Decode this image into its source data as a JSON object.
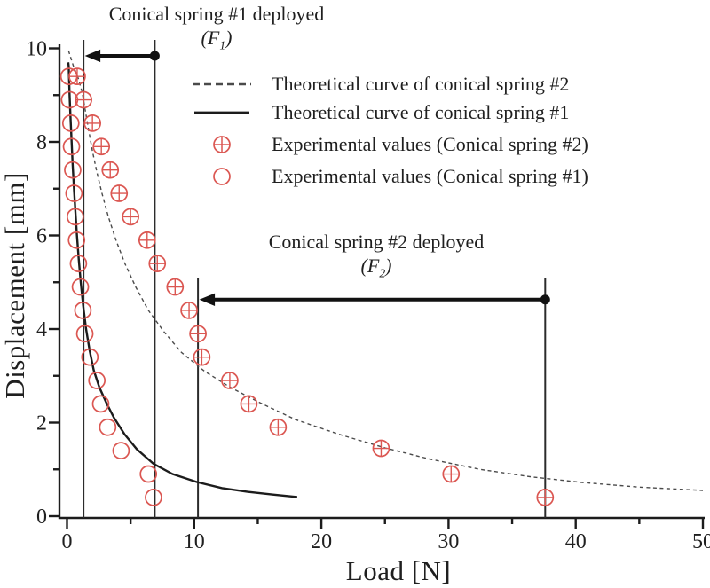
{
  "colors": {
    "marker_red": "#db5752",
    "line_black": "#1c1c1c",
    "dashed_gray": "#4a4a4a",
    "annotation_black": "#2b2b2b",
    "text": "#1f1f1f",
    "background": "#ffffff"
  },
  "annotations": {
    "spring1": {
      "line1": "Conical spring #1 deployed",
      "force_prefix": "(F",
      "force_sub": "1",
      "force_suffix": ")"
    },
    "spring2": {
      "line1": "Conical spring #2 deployed",
      "force_prefix": "(F",
      "force_sub": "2",
      "force_suffix": ")"
    }
  },
  "legend": {
    "items": [
      {
        "icon": "dashed-line-swatch",
        "label": "Theoretical curve of conical spring #2"
      },
      {
        "icon": "solid-line-swatch",
        "label": "Theoretical curve of conical spring #1"
      },
      {
        "icon": "circle-plus-marker",
        "label": "Experimental values (Conical spring #2)"
      },
      {
        "icon": "circle-marker",
        "label": "Experimental values (Conical spring #1)"
      }
    ]
  },
  "chart_data": {
    "type": "scatter",
    "title": "",
    "xlabel": "Load [N]",
    "ylabel": "Displacement [mm]",
    "xlim": [
      0,
      50
    ],
    "ylim": [
      0,
      10
    ],
    "grid": false,
    "legend_position": "upper-right-inside",
    "x_ticks_major": [
      0,
      10,
      20,
      30,
      40,
      50
    ],
    "x_ticks_minor": [
      5,
      15,
      25,
      35,
      45
    ],
    "y_ticks_major": [
      0,
      2,
      4,
      6,
      8,
      10
    ],
    "y_ticks_minor": [
      1,
      3,
      5,
      7,
      9
    ],
    "series": [
      {
        "name": "Theoretical curve of conical spring #2",
        "kind": "line",
        "style": "dashed",
        "color": "#4a4a4a",
        "points": [
          [
            0.12,
            9.95
          ],
          [
            0.5,
            9.62
          ],
          [
            0.9,
            9.35
          ],
          [
            1.2,
            9.05
          ],
          [
            1.45,
            8.65
          ],
          [
            1.7,
            8.25
          ],
          [
            2.0,
            7.8
          ],
          [
            2.35,
            7.35
          ],
          [
            2.75,
            6.9
          ],
          [
            3.25,
            6.4
          ],
          [
            3.85,
            5.9
          ],
          [
            4.55,
            5.4
          ],
          [
            5.4,
            4.9
          ],
          [
            6.4,
            4.4
          ],
          [
            7.6,
            3.95
          ],
          [
            9.0,
            3.5
          ],
          [
            10.8,
            3.1
          ],
          [
            12.8,
            2.76
          ],
          [
            15.2,
            2.42
          ],
          [
            18.0,
            2.06
          ],
          [
            21.5,
            1.74
          ],
          [
            25.0,
            1.46
          ],
          [
            28.5,
            1.22
          ],
          [
            32.5,
            1.0
          ],
          [
            36.5,
            0.84
          ],
          [
            40.5,
            0.72
          ],
          [
            45.0,
            0.62
          ],
          [
            50.0,
            0.55
          ]
        ]
      },
      {
        "name": "Theoretical curve of conical spring #1",
        "kind": "line",
        "style": "solid",
        "color": "#1c1c1c",
        "points": [
          [
            0.1,
            9.7
          ],
          [
            0.13,
            9.62
          ],
          [
            0.2,
            9.0
          ],
          [
            0.28,
            8.5
          ],
          [
            0.36,
            8.0
          ],
          [
            0.45,
            7.5
          ],
          [
            0.55,
            7.0
          ],
          [
            0.66,
            6.5
          ],
          [
            0.78,
            6.0
          ],
          [
            0.92,
            5.5
          ],
          [
            1.08,
            5.0
          ],
          [
            1.27,
            4.5
          ],
          [
            1.5,
            4.0
          ],
          [
            1.77,
            3.55
          ],
          [
            2.1,
            3.12
          ],
          [
            2.55,
            2.75
          ],
          [
            3.1,
            2.42
          ],
          [
            3.7,
            2.1
          ],
          [
            4.5,
            1.76
          ],
          [
            5.5,
            1.43
          ],
          [
            6.8,
            1.12
          ],
          [
            8.3,
            0.9
          ],
          [
            10.2,
            0.73
          ],
          [
            12.2,
            0.6
          ],
          [
            14.2,
            0.52
          ],
          [
            16.2,
            0.46
          ],
          [
            18.1,
            0.41
          ]
        ]
      },
      {
        "name": "Experimental values (Conical spring #2)",
        "kind": "scatter",
        "marker": "circle-plus",
        "color": "#db5752",
        "points": [
          [
            0.8,
            9.4
          ],
          [
            1.3,
            8.9
          ],
          [
            2.0,
            8.4
          ],
          [
            2.7,
            7.9
          ],
          [
            3.4,
            7.4
          ],
          [
            4.1,
            6.9
          ],
          [
            5.0,
            6.4
          ],
          [
            6.3,
            5.9
          ],
          [
            7.1,
            5.4
          ],
          [
            8.5,
            4.9
          ],
          [
            9.6,
            4.4
          ],
          [
            10.3,
            3.9
          ],
          [
            10.6,
            3.4
          ],
          [
            12.8,
            2.9
          ],
          [
            14.3,
            2.4
          ],
          [
            16.6,
            1.9
          ],
          [
            24.7,
            1.45
          ],
          [
            30.2,
            0.9
          ],
          [
            37.6,
            0.4
          ]
        ]
      },
      {
        "name": "Experimental values (Conical spring #1)",
        "kind": "scatter",
        "marker": "circle",
        "color": "#db5752",
        "points": [
          [
            0.15,
            9.4
          ],
          [
            0.2,
            8.9
          ],
          [
            0.3,
            8.4
          ],
          [
            0.35,
            7.9
          ],
          [
            0.45,
            7.4
          ],
          [
            0.55,
            6.9
          ],
          [
            0.65,
            6.4
          ],
          [
            0.75,
            5.9
          ],
          [
            0.9,
            5.4
          ],
          [
            1.05,
            4.9
          ],
          [
            1.25,
            4.4
          ],
          [
            1.4,
            3.9
          ],
          [
            1.8,
            3.4
          ],
          [
            2.35,
            2.9
          ],
          [
            2.65,
            2.4
          ],
          [
            3.2,
            1.9
          ],
          [
            4.25,
            1.4
          ],
          [
            6.4,
            0.9
          ],
          [
            6.8,
            0.4
          ]
        ]
      }
    ],
    "deployed_regions": [
      {
        "label": "Conical spring #1 deployed",
        "force_symbol": "F1",
        "head_load": 1.3,
        "dot_load": 6.9,
        "arrow_y_mm": 9.84,
        "line_top_mm": 10.18
      },
      {
        "label": "Conical spring #2 deployed",
        "force_symbol": "F2",
        "head_load": 10.3,
        "dot_load": 37.6,
        "arrow_y_mm": 4.63,
        "line_top_mm": 5.08
      }
    ]
  }
}
